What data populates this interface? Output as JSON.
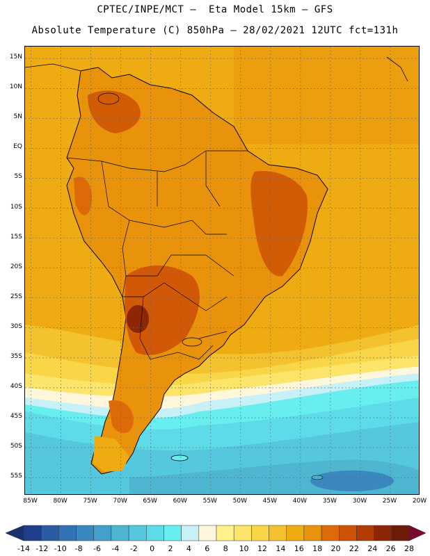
{
  "header": {
    "line1": "CPTEC/INPE/MCT –  Eta Model 15km – GFS",
    "line2": "Absolute Temperature (C) 850hPa – 28/02/2021 12UTC fct=131h"
  },
  "map": {
    "region": "South America",
    "lat_labels": [
      "15N",
      "10N",
      "5N",
      "EQ",
      "5S",
      "10S",
      "15S",
      "20S",
      "25S",
      "30S",
      "35S",
      "40S",
      "45S",
      "50S",
      "55S"
    ],
    "lon_labels": [
      "85W",
      "80W",
      "75W",
      "70W",
      "65W",
      "60W",
      "55W",
      "50W",
      "45W",
      "40W",
      "35W",
      "30W",
      "25W",
      "20W"
    ],
    "lat_range": [
      17,
      -58
    ],
    "lon_range": [
      -86,
      -20
    ]
  },
  "colorbar": {
    "labels": [
      "-14",
      "-12",
      "-10",
      "-8",
      "-6",
      "-4",
      "-2",
      "0",
      "2",
      "4",
      "6",
      "8",
      "10",
      "12",
      "14",
      "16",
      "18",
      "20",
      "22",
      "24",
      "26",
      "28"
    ],
    "colors": [
      "#1f3f8c",
      "#2b5ba5",
      "#3372b4",
      "#3b87c0",
      "#45a0c9",
      "#4fb6d2",
      "#55c8de",
      "#5edbe8",
      "#69eef0",
      "#c8f0f7",
      "#fff7dc",
      "#fef08a",
      "#fce56a",
      "#f9d648",
      "#f4c22f",
      "#efac12",
      "#e8930b",
      "#dd6a08",
      "#cd5205",
      "#b23a03",
      "#8c2604",
      "#6e1c0a"
    ],
    "low_cap_color": "#1a2f6e",
    "high_cap_color": "#7a0a2c"
  }
}
